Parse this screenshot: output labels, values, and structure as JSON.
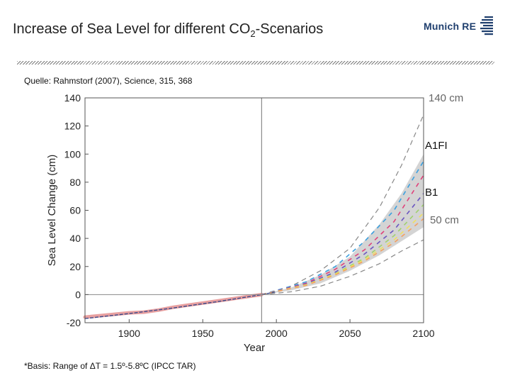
{
  "slide": {
    "title_prefix": "Increase of Sea Level for different CO",
    "title_sub": "2",
    "title_suffix": "-Scenarios",
    "source": "Quelle: Rahmstorf (2007), Science, 315, 368",
    "footnote": "*Basis: Range of ΔT = 1.5º-5.8ºC (IPCC TAR)",
    "logo_text": "Munich RE",
    "colors": {
      "logo": "#1f3f6e",
      "title": "#222222",
      "annotation_gray": "#666666"
    }
  },
  "annotations": {
    "upper": "140 cm",
    "a1fi": "A1FI",
    "b1": "B1",
    "lower": "50 cm"
  },
  "chart_data": {
    "type": "line",
    "xlabel": "Year",
    "ylabel": "Sea Level Change (cm)",
    "xlim": [
      1870,
      2100
    ],
    "ylim": [
      -20,
      140
    ],
    "x_ticks": [
      1900,
      1950,
      2000,
      2050,
      2100
    ],
    "y_ticks": [
      -20,
      0,
      20,
      40,
      60,
      80,
      100,
      120,
      140
    ],
    "vertical_marker_year": 1990,
    "grid": false,
    "observed": {
      "color": "#e8a0a0",
      "points": [
        [
          1870,
          -16
        ],
        [
          1880,
          -15
        ],
        [
          1890,
          -14
        ],
        [
          1900,
          -13
        ],
        [
          1910,
          -12.5
        ],
        [
          1920,
          -11
        ],
        [
          1930,
          -9
        ],
        [
          1940,
          -7.5
        ],
        [
          1950,
          -6
        ],
        [
          1960,
          -4.5
        ],
        [
          1970,
          -3
        ],
        [
          1980,
          -1.5
        ],
        [
          1990,
          0
        ]
      ]
    },
    "model_fit": {
      "color": "#3a4a8a",
      "points": [
        [
          1870,
          -17
        ],
        [
          1900,
          -13.5
        ],
        [
          1930,
          -9.5
        ],
        [
          1960,
          -5
        ],
        [
          1990,
          0
        ],
        [
          2000,
          2
        ]
      ]
    },
    "range_band": {
      "color": "#d4d4d4",
      "upper": [
        [
          1990,
          0
        ],
        [
          2010,
          5
        ],
        [
          2030,
          14
        ],
        [
          2050,
          27
        ],
        [
          2070,
          50
        ],
        [
          2085,
          72
        ],
        [
          2100,
          100
        ]
      ],
      "lower": [
        [
          1990,
          0
        ],
        [
          2010,
          3
        ],
        [
          2030,
          8
        ],
        [
          2050,
          17
        ],
        [
          2070,
          28
        ],
        [
          2085,
          38
        ],
        [
          2100,
          48
        ]
      ]
    },
    "outer_bounds": {
      "color": "#888888",
      "upper": [
        [
          1990,
          0
        ],
        [
          2010,
          6
        ],
        [
          2030,
          17
        ],
        [
          2050,
          33
        ],
        [
          2070,
          62
        ],
        [
          2085,
          92
        ],
        [
          2100,
          128
        ]
      ],
      "lower": [
        [
          1990,
          0
        ],
        [
          2010,
          2
        ],
        [
          2030,
          6
        ],
        [
          2050,
          13
        ],
        [
          2070,
          22
        ],
        [
          2085,
          31
        ],
        [
          2100,
          39
        ]
      ]
    },
    "scenarios": [
      {
        "color": "#3aa0e0",
        "points": [
          [
            1990,
            0
          ],
          [
            2020,
            9
          ],
          [
            2040,
            20
          ],
          [
            2060,
            38
          ],
          [
            2080,
            60
          ],
          [
            2100,
            95
          ]
        ]
      },
      {
        "color": "#e0407a",
        "points": [
          [
            1990,
            0
          ],
          [
            2020,
            8
          ],
          [
            2040,
            18
          ],
          [
            2060,
            32
          ],
          [
            2080,
            52
          ],
          [
            2100,
            85
          ]
        ]
      },
      {
        "color": "#6a55c0",
        "points": [
          [
            1990,
            0
          ],
          [
            2020,
            7.5
          ],
          [
            2040,
            16
          ],
          [
            2060,
            29
          ],
          [
            2080,
            46
          ],
          [
            2100,
            72
          ]
        ]
      },
      {
        "color": "#a0d070",
        "points": [
          [
            1990,
            0
          ],
          [
            2020,
            7
          ],
          [
            2040,
            15
          ],
          [
            2060,
            26
          ],
          [
            2080,
            42
          ],
          [
            2100,
            64
          ]
        ]
      },
      {
        "color": "#f0e060",
        "points": [
          [
            1990,
            0
          ],
          [
            2020,
            7
          ],
          [
            2040,
            14.5
          ],
          [
            2060,
            25
          ],
          [
            2080,
            39
          ],
          [
            2100,
            58
          ]
        ]
      },
      {
        "color": "#f4a060",
        "points": [
          [
            1990,
            0
          ],
          [
            2020,
            6.5
          ],
          [
            2040,
            14
          ],
          [
            2060,
            24
          ],
          [
            2080,
            37
          ],
          [
            2100,
            54
          ]
        ]
      }
    ]
  }
}
